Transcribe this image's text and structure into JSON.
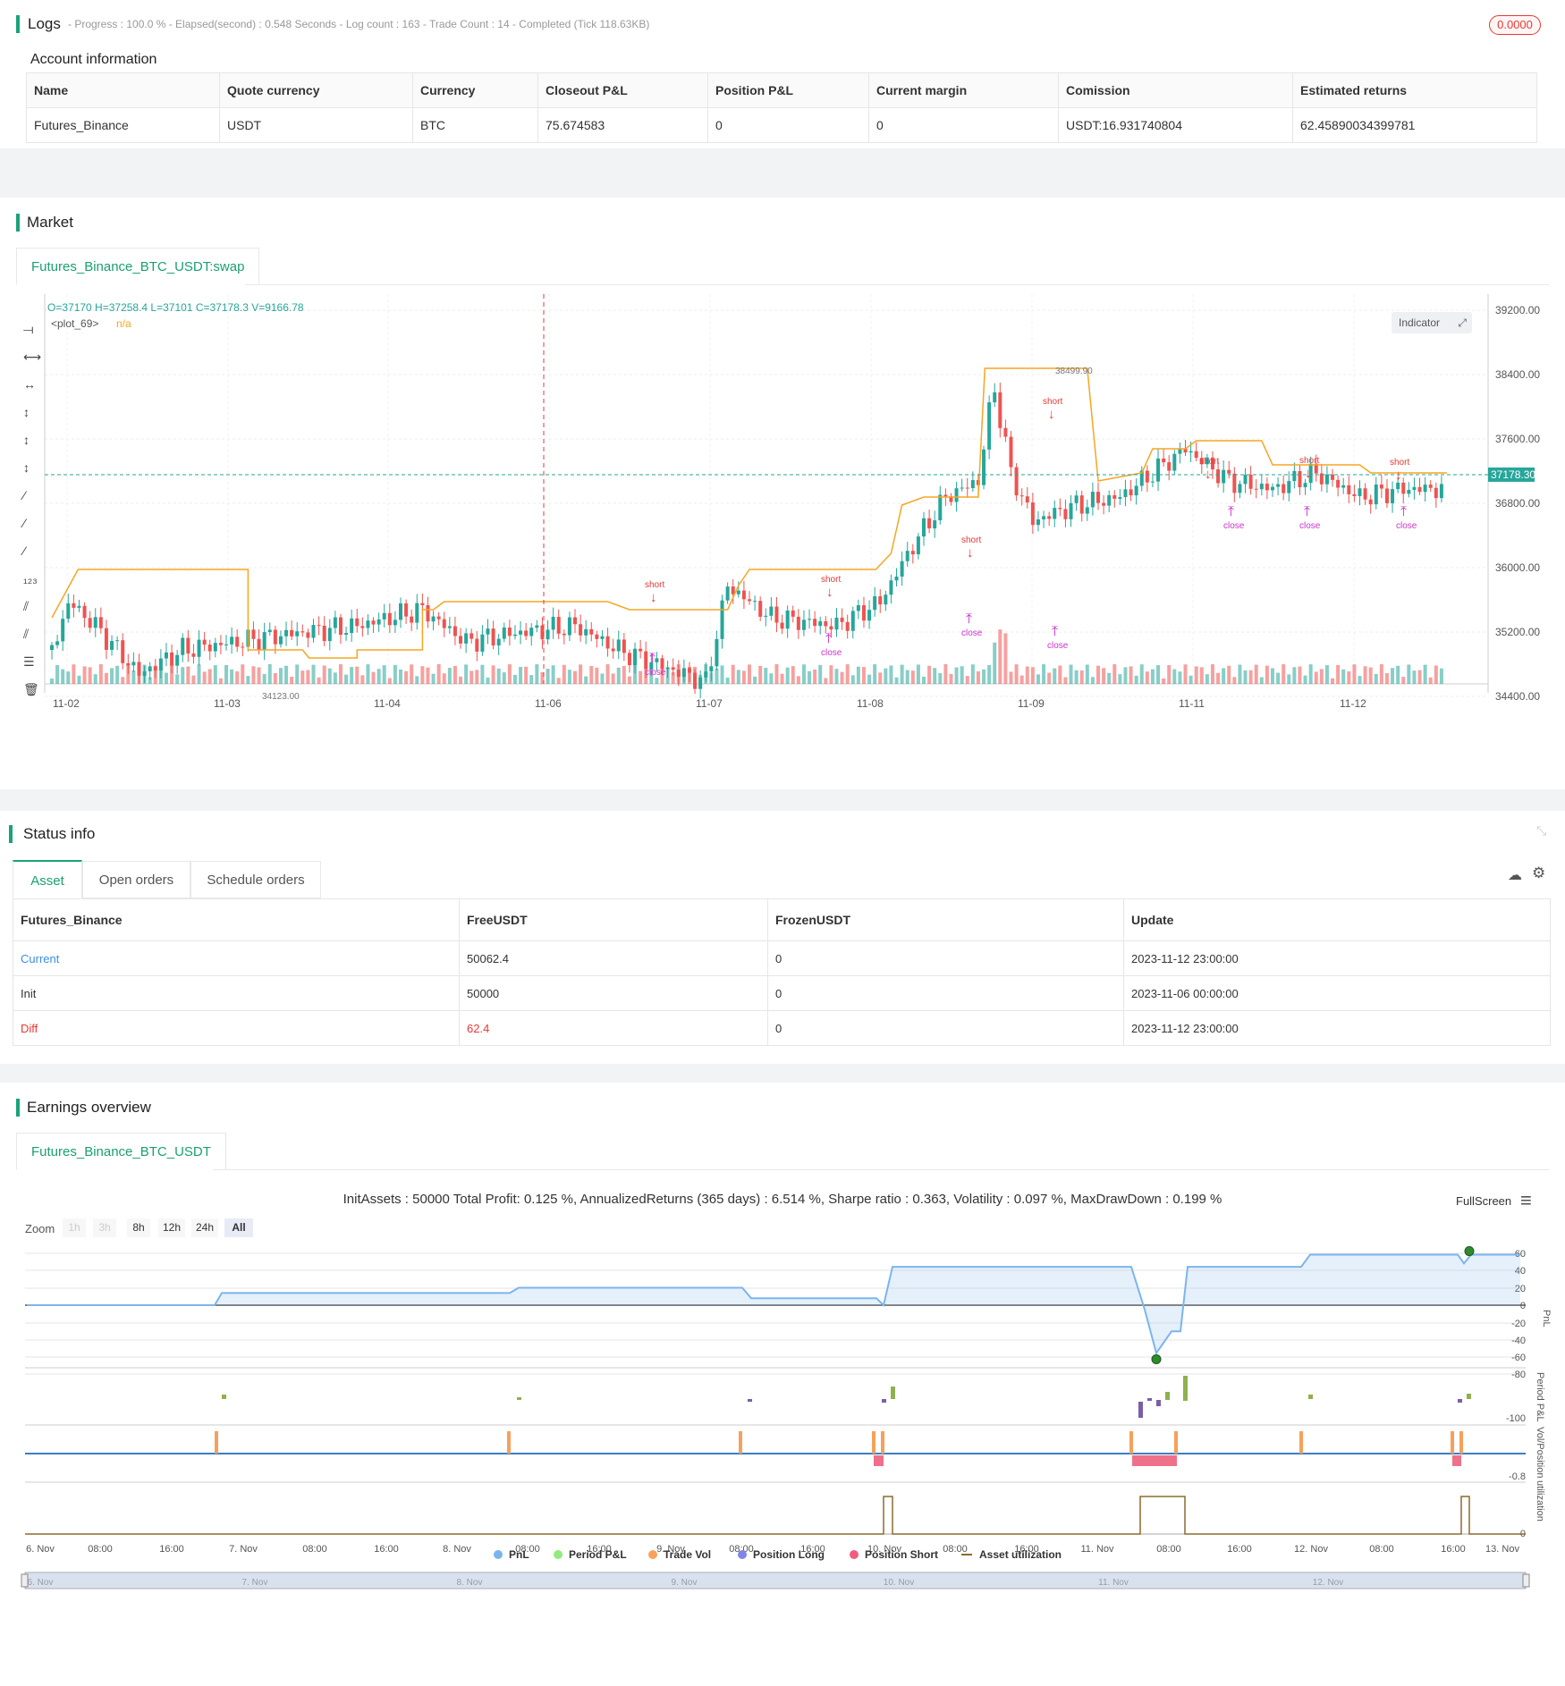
{
  "logs": {
    "title": "Logs",
    "status": "- Progress : 100.0 % - Elapsed(second) : 0.548 Seconds - Log count : 163 - Trade Count : 14 - Completed (Tick 118.63KB)",
    "badge": "0.0000"
  },
  "account": {
    "title": "Account information",
    "headers": [
      "Name",
      "Quote currency",
      "Currency",
      "Closeout P&L",
      "Position P&L",
      "Current margin",
      "Comission",
      "Estimated returns"
    ],
    "row": [
      "Futures_Binance",
      "USDT",
      "BTC",
      "75.674583",
      "0",
      "0",
      "USDT:16.931740804",
      "62.45890034399781"
    ]
  },
  "market": {
    "title": "Market",
    "tab": "Futures_Binance_BTC_USDT:swap",
    "ohlc": "O=37170 H=37258.4 L=37101 C=37178.3 V=9166.78",
    "plot_label": "<plot_69>",
    "plot_value": "n/a",
    "indicator_btn": "Indicator",
    "price_tag": "37178.30",
    "high_label": "38499.90",
    "low_label": "34123.00",
    "y_ticks": [
      "39200.00",
      "38400.00",
      "37600.00",
      "36800.00",
      "36000.00",
      "35200.00",
      "34400.00"
    ],
    "x_ticks": [
      "11-02",
      "11-03",
      "11-04",
      "11-06",
      "11-07",
      "11-08",
      "11-09",
      "11-11",
      "11-12"
    ],
    "short_label": "short",
    "close_label": "close"
  },
  "status": {
    "title": "Status info",
    "tabs": [
      "Asset",
      "Open orders",
      "Schedule orders"
    ],
    "headers": [
      "Futures_Binance",
      "FreeUSDT",
      "FrozenUSDT",
      "Update"
    ],
    "rows": [
      [
        "Current",
        "50062.4",
        "0",
        "2023-11-12 23:00:00"
      ],
      [
        "Init",
        "50000",
        "0",
        "2023-11-06 00:00:00"
      ],
      [
        "Diff",
        "62.4",
        "0",
        "2023-11-12 23:00:00"
      ]
    ]
  },
  "earnings": {
    "title": "Earnings overview",
    "tab": "Futures_Binance_BTC_USDT",
    "summary": "InitAssets : 50000 Total Profit: 0.125 %, AnnualizedReturns (365 days) : 6.514 %, Sharpe ratio : 0.363, Volatility : 0.097 %, MaxDrawDown : 0.199 %",
    "fullscreen": "FullScreen",
    "zoom_label": "Zoom",
    "zoom": [
      "1h",
      "3h",
      "8h",
      "12h",
      "24h",
      "All"
    ],
    "pnl_ticks": [
      "60",
      "40",
      "20",
      "0",
      "-20",
      "-40",
      "-60",
      "-80"
    ],
    "ppl_tick": "-100",
    "vol_tick": "-0.8",
    "util_tick": "0",
    "axis_names": [
      "PnL",
      "Period P&L",
      "Vol/Position",
      "utilization"
    ],
    "x_ticks": [
      "6. Nov",
      "08:00",
      "16:00",
      "7. Nov",
      "08:00",
      "16:00",
      "8. Nov",
      "08:00",
      "16:00",
      "9. Nov",
      "08:00",
      "16:00",
      "10. Nov",
      "08:00",
      "16:00",
      "11. Nov",
      "08:00",
      "16:00",
      "12. Nov",
      "08:00",
      "16:00",
      "13. Nov"
    ],
    "nav_ticks": [
      "6. Nov",
      "7. Nov",
      "8. Nov",
      "9. Nov",
      "10. Nov",
      "11. Nov",
      "12. Nov"
    ],
    "legend": [
      "PnL",
      "Period P&L",
      "Trade Vol",
      "Position Long",
      "Position Short",
      "Asset utilization"
    ]
  },
  "colors": {
    "accent": "#1aa37a",
    "up": "#26a69a",
    "down": "#ef5350",
    "line": "#f5a623",
    "pnl": "#7cb5ec",
    "signal": "#cc33cc"
  }
}
